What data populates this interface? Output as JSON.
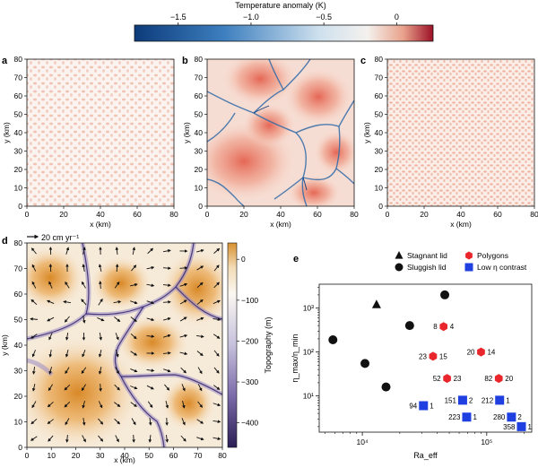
{
  "colorbar_top": {
    "title": "Temperature anomaly (K)",
    "ticks": [
      "−1.5",
      "−1.0",
      "−0.5",
      "0"
    ],
    "tick_values": [
      -1.5,
      -1.0,
      -0.5,
      0
    ],
    "range": [
      -1.8,
      0.25
    ],
    "colors": {
      "cold": "#0d3b7a",
      "mid": "#f4f1ee",
      "hot": "#9c1026"
    }
  },
  "panels": {
    "a": {
      "label": "a"
    },
    "b": {
      "label": "b"
    },
    "c": {
      "label": "c"
    },
    "d": {
      "label": "d",
      "arrow_key": "20 cm yr⁻¹"
    },
    "e": {
      "label": "e"
    }
  },
  "map_axes": {
    "xlabel": "x (km)",
    "ylabel": "y (km)",
    "ticks": [
      "0",
      "10",
      "20",
      "30",
      "40",
      "50",
      "60",
      "70",
      "80"
    ],
    "ticks_top_row": [
      "0",
      "20",
      "40",
      "60",
      "80"
    ]
  },
  "colorbar_d": {
    "title": "Topography (m)",
    "ticks": [
      "0",
      "−100",
      "−200",
      "−300",
      "−400"
    ],
    "tick_values": [
      0,
      -100,
      -200,
      -300,
      -400
    ],
    "range": [
      -460,
      40
    ],
    "colors": {
      "high": "#d8902f",
      "low": "#2b1e55",
      "edge": "#ffffff"
    }
  },
  "legend_e": [
    {
      "label": "Stagnant lid",
      "marker": "triangle",
      "color": "#111111"
    },
    {
      "label": "Sluggish lid",
      "marker": "circle",
      "color": "#111111"
    },
    {
      "label": "Polygons",
      "marker": "hexagon",
      "color": "#e8262b"
    },
    {
      "label": "Low η contrast",
      "marker": "square",
      "color": "#1f3fe0"
    }
  ],
  "chart_data": {
    "type": "scatter",
    "xscale": "log",
    "yscale": "log",
    "xlabel": "Ra_eff",
    "ylabel": "η_max/η_min",
    "xlim": [
      4500,
      230000
    ],
    "ylim": [
      1.5,
      3500
    ],
    "x_ticks": [
      "10⁴",
      "10⁵"
    ],
    "y_ticks": [
      "10¹",
      "10²",
      "10³"
    ],
    "series": [
      {
        "name": "Stagnant lid",
        "marker": "triangle",
        "color": "#111111",
        "points": [
          {
            "x": 13000,
            "y": 1200
          }
        ]
      },
      {
        "name": "Sluggish lid",
        "marker": "circle",
        "color": "#111111",
        "points": [
          {
            "x": 5800,
            "y": 190
          },
          {
            "x": 10500,
            "y": 55
          },
          {
            "x": 15500,
            "y": 16
          },
          {
            "x": 24000,
            "y": 400
          },
          {
            "x": 46000,
            "y": 2000
          }
        ]
      },
      {
        "name": "Polygons",
        "marker": "hexagon",
        "color": "#e8262b",
        "points": [
          {
            "x": 45000,
            "y": 380,
            "label": "8",
            "label2": "4"
          },
          {
            "x": 37000,
            "y": 80,
            "label": "23",
            "label2": "15"
          },
          {
            "x": 90000,
            "y": 100,
            "label": "20",
            "label2": "14"
          },
          {
            "x": 48000,
            "y": 25,
            "label": "52",
            "label2": "23"
          },
          {
            "x": 125000,
            "y": 25,
            "label": "82",
            "label2": "20"
          }
        ]
      },
      {
        "name": "Low η contrast",
        "marker": "square",
        "color": "#1f3fe0",
        "points": [
          {
            "x": 31000,
            "y": 6,
            "label": "94",
            "label2": "1"
          },
          {
            "x": 64000,
            "y": 8,
            "label": "151",
            "label2": "2"
          },
          {
            "x": 69000,
            "y": 3.3,
            "label": "223",
            "label2": "1"
          },
          {
            "x": 127000,
            "y": 8,
            "label": "212",
            "label2": "1"
          },
          {
            "x": 158000,
            "y": 3.3,
            "label": "280",
            "label2": "2"
          },
          {
            "x": 190000,
            "y": 2.0,
            "label": "358",
            "label2": "1"
          }
        ]
      }
    ]
  }
}
